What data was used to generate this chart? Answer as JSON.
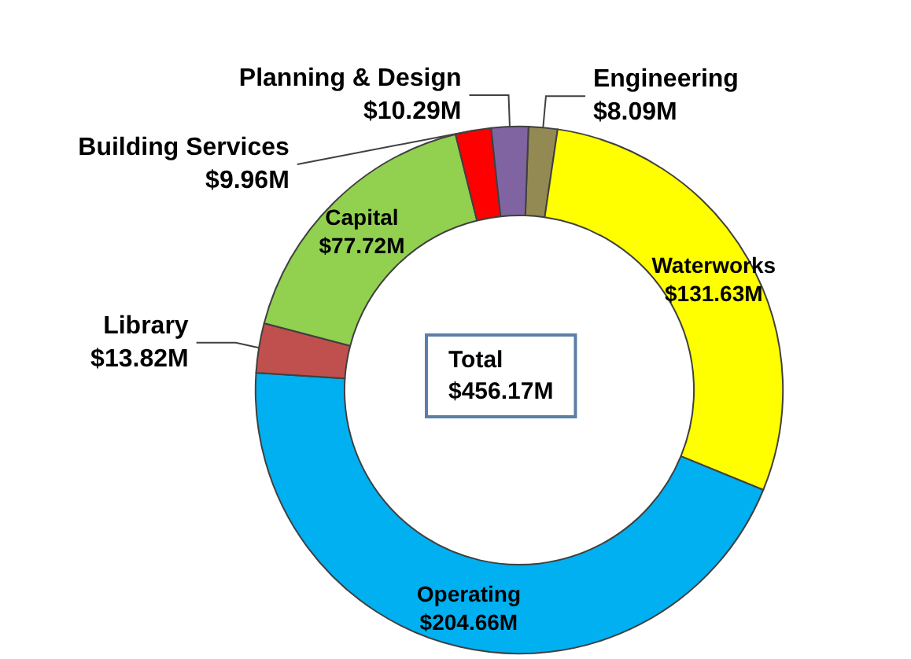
{
  "chart_data": {
    "type": "donut",
    "categories": [
      "Engineering",
      "Waterworks",
      "Operating",
      "Library",
      "Capital",
      "Building Services",
      "Planning & Design"
    ],
    "values": [
      8.09,
      131.63,
      204.66,
      13.82,
      77.72,
      9.96,
      10.29
    ],
    "value_labels": [
      "$8.09M",
      "$131.63M",
      "$204.66M",
      "$13.82M",
      "$77.72M",
      "$9.96M",
      "$10.29M"
    ],
    "colors": [
      "#938953",
      "#ffff00",
      "#00b0f0",
      "#c0504d",
      "#92d050",
      "#ff0000",
      "#8064a2"
    ],
    "annotations": [
      "Total\n$456.17M"
    ],
    "legend": false
  }
}
